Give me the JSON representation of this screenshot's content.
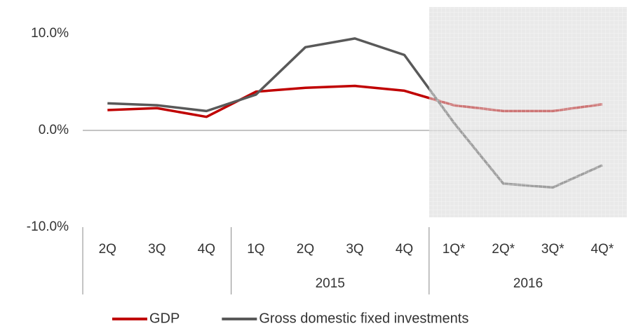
{
  "chart_data": {
    "type": "line",
    "categories": [
      "2Q",
      "3Q",
      "4Q",
      "1Q",
      "2Q",
      "3Q",
      "4Q",
      "1Q*",
      "2Q*",
      "3Q*",
      "4Q*"
    ],
    "groups": [
      {
        "label": null,
        "size": 3
      },
      {
        "label": "2015",
        "size": 4
      },
      {
        "label": "2016",
        "size": 4
      }
    ],
    "series": [
      {
        "name": "GDP",
        "color": "#c00000",
        "values": [
          2.1,
          2.3,
          1.4,
          4.0,
          4.4,
          4.6,
          4.1,
          2.6,
          2.0,
          2.0,
          2.7
        ]
      },
      {
        "name": "Gross domestic fixed investments",
        "color": "#595959",
        "values": [
          2.8,
          2.6,
          2.0,
          3.7,
          8.6,
          9.5,
          7.8,
          0.8,
          -5.5,
          -5.9,
          -3.6
        ]
      }
    ],
    "ylim": [
      -10,
      10
    ],
    "yticks": [
      {
        "value": -10,
        "label": "-10.0%"
      },
      {
        "value": 0,
        "label": "0.0%"
      },
      {
        "value": 10,
        "label": "10.0%"
      }
    ],
    "legend": "bottom"
  }
}
